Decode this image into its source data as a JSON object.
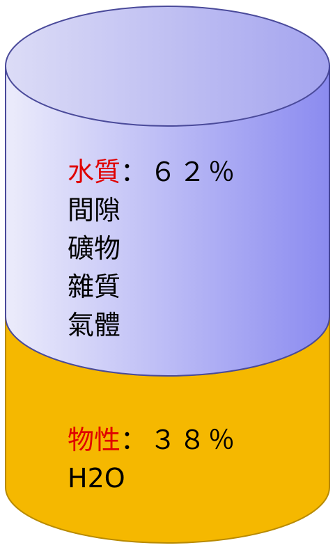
{
  "upper": {
    "title": "水質",
    "value": "：６２％",
    "items": [
      "間隙",
      "礦物",
      "雜質",
      "氣體"
    ]
  },
  "lower": {
    "title": "物性",
    "value": "：３８％",
    "items": [
      "H2O"
    ]
  }
}
